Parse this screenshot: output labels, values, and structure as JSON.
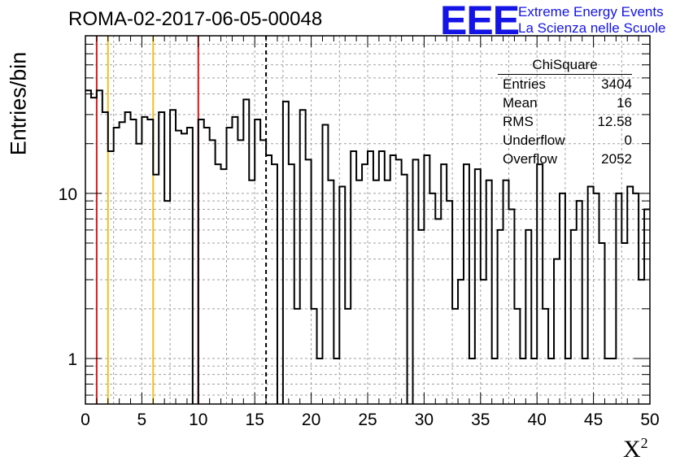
{
  "header": {
    "title": "ROMA-02-2017-06-05-00048",
    "logo": "EEE",
    "logo_line1": "Extreme Energy Events",
    "logo_line2": "La Scienza nelle Scuole"
  },
  "stats": {
    "name": "ChiSquare",
    "rows": [
      {
        "label": "Entries",
        "value": "3404"
      },
      {
        "label": "Mean",
        "value": "16"
      },
      {
        "label": "RMS",
        "value": "12.58"
      },
      {
        "label": "Underflow",
        "value": "0"
      },
      {
        "label": "Overflow",
        "value": "2052"
      }
    ]
  },
  "colors": {
    "red_line": "#e01414",
    "yellow_line": "#f0c020",
    "histogram": "#000000",
    "grid": "#a0a0a0",
    "logo": "#1414e6"
  },
  "chart_data": {
    "type": "step-histogram",
    "title": "ROMA-02-2017-06-05-00048",
    "xlabel": "X",
    "xlabel_superscript": "2",
    "ylabel": "Entries/bin",
    "xlim": [
      0,
      50
    ],
    "ylim": [
      0.53,
      90
    ],
    "yscale": "log",
    "grid": true,
    "xticks": [
      0,
      5,
      10,
      15,
      20,
      25,
      30,
      35,
      40,
      45,
      50
    ],
    "yticks": [
      1,
      10
    ],
    "bin_width": 0.5,
    "values": [
      42,
      38,
      42,
      31,
      18,
      25,
      27,
      31,
      28,
      20,
      29,
      28,
      13,
      31,
      9,
      32,
      24,
      23,
      25,
      0,
      28,
      25,
      21,
      15,
      14,
      25,
      29,
      21,
      37,
      12,
      28,
      21,
      17,
      15,
      0,
      36,
      15,
      2,
      32,
      16,
      2,
      1,
      26,
      12,
      1,
      11,
      2,
      18,
      12,
      15,
      18,
      12,
      18,
      12,
      17,
      16,
      13,
      0,
      16,
      6,
      17,
      10,
      7,
      15,
      9,
      2,
      3,
      15,
      1,
      14,
      3,
      12,
      1,
      6,
      12,
      8,
      2,
      1,
      6,
      1,
      15,
      2,
      1,
      4,
      10,
      1,
      6,
      9,
      1,
      11,
      10,
      5,
      1,
      1,
      10,
      5,
      11,
      10,
      3,
      8
    ],
    "vertical_lines": [
      {
        "x": 1,
        "color": "red"
      },
      {
        "x": 2,
        "color": "yellow"
      },
      {
        "x": 6,
        "color": "yellow"
      },
      {
        "x": 10,
        "color": "red"
      },
      {
        "x": 16,
        "color": "black-dashed"
      }
    ]
  }
}
